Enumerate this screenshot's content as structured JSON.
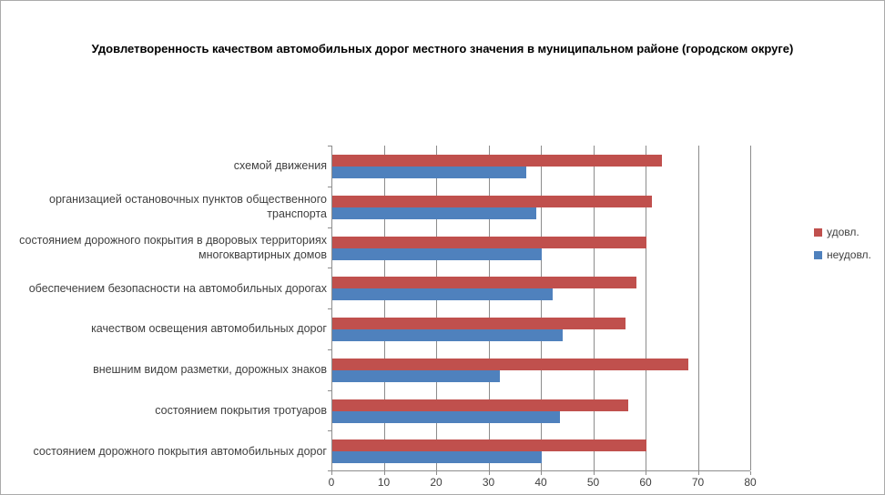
{
  "chart_data": {
    "type": "bar",
    "orientation": "horizontal",
    "title": "Удовлетворенность качеством автомобильных дорог местного значения в муниципальном районе (городском округе)",
    "categories": [
      "схемой движения",
      "организацией остановочных пунктов общественного транспорта",
      "состоянием дорожного покрытия в дворовых территориях многоквартирных домов",
      "обеспечением  безопасности на автомобильных дорогах",
      "качеством освещения  автомобильных дорог",
      "внешним  видом разметки, дорожных знаков",
      "состоянием покрытия тротуаров",
      "состоянием дорожного покрытия автомобильных дорог"
    ],
    "series": [
      {
        "name": "удовл.",
        "color": "#c0504d",
        "values": [
          63,
          61,
          60,
          58,
          56,
          68,
          56.5,
          60
        ]
      },
      {
        "name": "неудовл.",
        "color": "#4f81bd",
        "values": [
          37,
          39,
          40,
          42,
          44,
          32,
          43.5,
          40
        ]
      }
    ],
    "xlim": [
      0,
      80
    ],
    "x_ticks": [
      0,
      10,
      20,
      30,
      40,
      50,
      60,
      70,
      80
    ],
    "grid": "vertical-gridlines",
    "legend_position": "right",
    "colors": {
      "gridline": "#8c8c8c",
      "axis": "#8c8c8c",
      "text": "#3f3f3f",
      "title": "#000000",
      "frame_border": "#ababab",
      "background": "#ffffff"
    }
  }
}
